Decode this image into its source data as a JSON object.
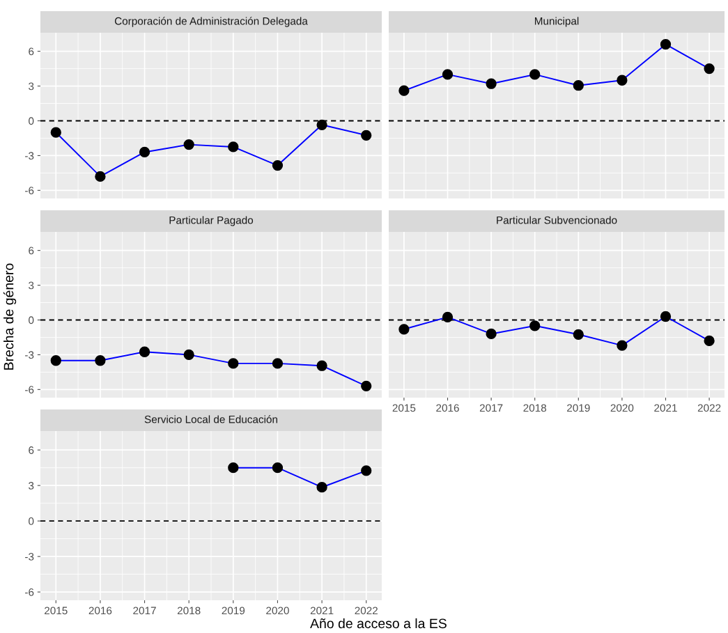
{
  "chart_data": [
    {
      "type": "line",
      "title": "Corporación de Administración Delegada",
      "x": [
        2015,
        2016,
        2017,
        2018,
        2019,
        2020,
        2021,
        2022
      ],
      "series": [
        {
          "color": "#0000ff",
          "values": [
            -1.0,
            -4.8,
            -2.7,
            -2.05,
            -2.25,
            -3.85,
            -0.35,
            -1.25
          ]
        }
      ],
      "xlim": [
        2014.65,
        2022.35
      ],
      "xticks": [
        2015,
        2016,
        2017,
        2018,
        2019,
        2020,
        2021,
        2022
      ],
      "ylim": [
        -6.7,
        7.6
      ],
      "yticks": [
        -6,
        -3,
        0,
        3,
        6
      ],
      "ref_lines": [
        {
          "axis": "y",
          "value": 0,
          "color": "#000000",
          "line_style": "dashed"
        }
      ],
      "grid": true,
      "marker": "circle",
      "tick_labels": "y"
    },
    {
      "type": "line",
      "title": "Municipal",
      "x": [
        2015,
        2016,
        2017,
        2018,
        2019,
        2020,
        2021,
        2022
      ],
      "series": [
        {
          "color": "#0000ff",
          "values": [
            2.6,
            4.0,
            3.2,
            4.0,
            3.05,
            3.5,
            6.6,
            4.5
          ]
        }
      ],
      "xlim": [
        2014.65,
        2022.35
      ],
      "xticks": [
        2015,
        2016,
        2017,
        2018,
        2019,
        2020,
        2021,
        2022
      ],
      "ylim": [
        -6.7,
        7.6
      ],
      "yticks": [
        -6,
        -3,
        0,
        3,
        6
      ],
      "ref_lines": [
        {
          "axis": "y",
          "value": 0,
          "color": "#000000",
          "line_style": "dashed"
        }
      ],
      "grid": true,
      "marker": "circle",
      "tick_labels": false
    },
    {
      "type": "line",
      "title": "Particular Pagado",
      "ylabel": "Brecha de género",
      "x": [
        2015,
        2016,
        2017,
        2018,
        2019,
        2020,
        2021,
        2022
      ],
      "series": [
        {
          "color": "#0000ff",
          "values": [
            -3.5,
            -3.5,
            -2.75,
            -3.0,
            -3.75,
            -3.75,
            -3.95,
            -5.7
          ]
        }
      ],
      "xlim": [
        2014.65,
        2022.35
      ],
      "xticks": [
        2015,
        2016,
        2017,
        2018,
        2019,
        2020,
        2021,
        2022
      ],
      "ylim": [
        -6.7,
        7.6
      ],
      "yticks": [
        -6,
        -3,
        0,
        3,
        6
      ],
      "ref_lines": [
        {
          "axis": "y",
          "value": 0,
          "color": "#000000",
          "line_style": "dashed"
        }
      ],
      "grid": true,
      "marker": "circle",
      "tick_labels": "y"
    },
    {
      "type": "line",
      "title": "Particular Subvencionado",
      "x": [
        2015,
        2016,
        2017,
        2018,
        2019,
        2020,
        2021,
        2022
      ],
      "series": [
        {
          "color": "#0000ff",
          "values": [
            -0.8,
            0.25,
            -1.2,
            -0.5,
            -1.25,
            -2.2,
            0.3,
            -1.8
          ]
        }
      ],
      "xlim": [
        2014.65,
        2022.35
      ],
      "xticks": [
        2015,
        2016,
        2017,
        2018,
        2019,
        2020,
        2021,
        2022
      ],
      "ylim": [
        -6.7,
        7.6
      ],
      "yticks": [
        -6,
        -3,
        0,
        3,
        6
      ],
      "ref_lines": [
        {
          "axis": "y",
          "value": 0,
          "color": "#000000",
          "line_style": "dashed"
        }
      ],
      "grid": true,
      "marker": "circle",
      "tick_labels": "x"
    },
    {
      "type": "line",
      "title": "Servicio Local de Educación",
      "xlabel": "Año de acceso a la ES",
      "x": [
        2019,
        2020,
        2021,
        2022
      ],
      "series": [
        {
          "color": "#0000ff",
          "values": [
            4.5,
            4.5,
            2.85,
            4.25
          ]
        }
      ],
      "xlim": [
        2014.65,
        2022.35
      ],
      "xticks": [
        2015,
        2016,
        2017,
        2018,
        2019,
        2020,
        2021,
        2022
      ],
      "ylim": [
        -6.7,
        7.6
      ],
      "yticks": [
        -6,
        -3,
        0,
        3,
        6
      ],
      "ref_lines": [
        {
          "axis": "y",
          "value": 0,
          "color": "#000000",
          "line_style": "dashed"
        }
      ],
      "grid": true,
      "marker": "circle"
    }
  ]
}
